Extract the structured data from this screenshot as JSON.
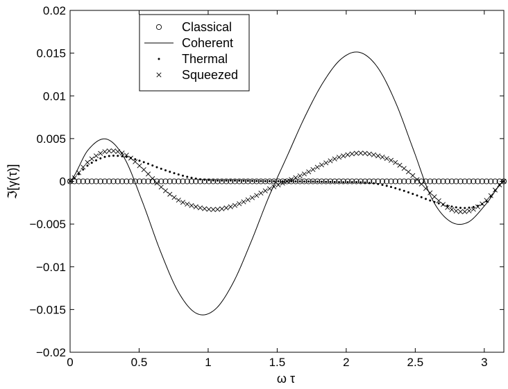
{
  "chart_data": {
    "type": "line",
    "title": "",
    "xlabel": "ω τ",
    "ylabel": "ℑ[γ(τ)]",
    "xlim": [
      0,
      3.1416
    ],
    "ylim": [
      -0.02,
      0.02
    ],
    "xticks": [
      0,
      0.5,
      1,
      1.5,
      2,
      2.5,
      3
    ],
    "xtick_labels": [
      "0",
      "0.5",
      "1",
      "1.5",
      "2",
      "2.5",
      "3"
    ],
    "yticks": [
      -0.02,
      -0.015,
      -0.01,
      -0.005,
      0,
      0.005,
      0.01,
      0.015,
      0.02
    ],
    "ytick_labels": [
      "−0.02",
      "−0.015",
      "−0.01",
      "−0.005",
      "0",
      "0.005",
      "0.01",
      "0.015",
      "0.02"
    ],
    "grid": false,
    "legend_position": "top-left",
    "series": [
      {
        "name": "Classical",
        "marker": "circle",
        "x": [
          0,
          0.3927,
          0.7854,
          1.1781,
          1.5708,
          1.9635,
          2.3562,
          2.7489,
          3.1416
        ],
        "y": [
          0,
          0,
          0,
          0,
          0,
          0,
          0,
          0,
          0
        ]
      },
      {
        "name": "Coherent",
        "marker": "line",
        "x": [
          0,
          0.1309,
          0.2618,
          0.3927,
          0.5236,
          0.6545,
          0.7854,
          0.9163,
          1.0472,
          1.1781,
          1.309,
          1.4399,
          1.5708,
          1.7017,
          1.8326,
          1.9635,
          2.0944,
          2.2253,
          2.3562,
          2.4871,
          2.618,
          2.7489,
          2.8798,
          3.0107,
          3.1416
        ],
        "y": [
          0,
          0.00368,
          0.00495,
          0.00274,
          -0.00239,
          -0.00819,
          -0.01299,
          -0.01546,
          -0.01503,
          -0.01196,
          -0.00715,
          -0.0018,
          0.0029,
          0.00759,
          0.01157,
          0.01432,
          0.0151,
          0.01338,
          0.00928,
          0.00368,
          -0.00195,
          -0.00465,
          -0.00481,
          -0.00269,
          0
        ]
      },
      {
        "name": "Thermal",
        "marker": "dot",
        "x": [
          0,
          0.1309,
          0.2618,
          0.3927,
          0.5236,
          0.6545,
          0.7854,
          0.9163,
          1.0472,
          1.1781,
          1.309,
          1.4399,
          1.5708,
          1.7017,
          1.8326,
          1.9635,
          2.0944,
          2.2253,
          2.3562,
          2.4871,
          2.618,
          2.7489,
          2.8798,
          3.0107,
          3.1416
        ],
        "y": [
          0,
          0.0019,
          0.0029,
          0.0029,
          0.0023,
          0.0015,
          0.0008,
          0.0003,
          0.0001,
          0.0001,
          5e-05,
          2e-05,
          0,
          -2e-05,
          -5e-05,
          -0.0001,
          -0.0001,
          -0.0003,
          -0.0008,
          -0.0015,
          -0.0023,
          -0.0029,
          -0.0031,
          -0.0024,
          0
        ]
      },
      {
        "name": "Squeezed",
        "marker": "cross",
        "x": [
          0,
          0.1309,
          0.2618,
          0.3927,
          0.5236,
          0.6545,
          0.7854,
          0.9163,
          1.0472,
          1.1781,
          1.309,
          1.4399,
          1.5708,
          1.7017,
          1.8326,
          1.9635,
          2.0944,
          2.2253,
          2.3562,
          2.4871,
          2.618,
          2.7489,
          2.8798,
          3.0107,
          3.1416
        ],
        "y": [
          0,
          0.00229,
          0.00351,
          0.0032,
          0.00152,
          -0.0006,
          -0.0022,
          -0.003,
          -0.0033,
          -0.0029,
          -0.002,
          -0.0009,
          0,
          0.0009,
          0.002,
          0.0029,
          0.0033,
          0.003,
          0.0022,
          0.0006,
          -0.0015,
          -0.0032,
          -0.0035,
          -0.0023,
          0
        ]
      }
    ]
  }
}
